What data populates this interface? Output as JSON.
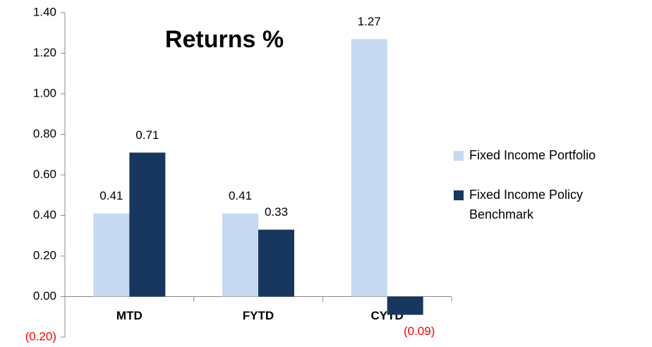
{
  "chart_data": {
    "type": "bar",
    "title": "Returns %",
    "categories": [
      "MTD",
      "FYTD",
      "CYTD"
    ],
    "series": [
      {
        "name": "Fixed Income Portfolio",
        "color": "#c6d9f1",
        "values": [
          0.41,
          0.41,
          1.27
        ],
        "value_labels": [
          "0.41",
          "0.41",
          "1.27"
        ]
      },
      {
        "name": "Fixed Income Policy Benchmark",
        "color": "#17375e",
        "values": [
          0.71,
          0.33,
          -0.09
        ],
        "value_labels": [
          "0.71",
          "0.33",
          "(0.09)"
        ]
      }
    ],
    "ylim": [
      -0.2,
      1.4
    ],
    "yticks": [
      {
        "value": -0.2,
        "label": "(0.20)"
      },
      {
        "value": 0,
        "label": "0.00"
      },
      {
        "value": 0.2,
        "label": "0.20"
      },
      {
        "value": 0.4,
        "label": "0.40"
      },
      {
        "value": 0.6,
        "label": "0.60"
      },
      {
        "value": 0.8,
        "label": "0.80"
      },
      {
        "value": 1,
        "label": "1.00"
      },
      {
        "value": 1.2,
        "label": "1.20"
      },
      {
        "value": 1.4,
        "label": "1.40"
      }
    ],
    "negative_label_color": "#ff0000",
    "legend": "right"
  }
}
